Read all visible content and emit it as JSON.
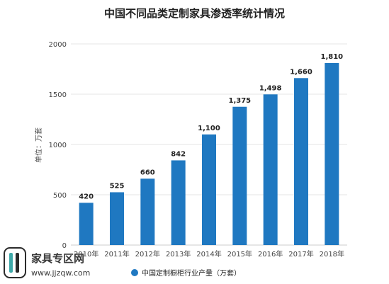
{
  "chart_data": {
    "type": "bar",
    "title": "中国不同品类定制家具渗透率统计情况",
    "ylabel": "单位：万套",
    "categories": [
      "2010年",
      "2011年",
      "2012年",
      "2013年",
      "2014年",
      "2015年",
      "2016年",
      "2017年",
      "2018年"
    ],
    "series": [
      {
        "name": "中国定制橱柜行业产量（万套）",
        "values": [
          420,
          525,
          660,
          842,
          1100,
          1375,
          1498,
          1660,
          1810
        ]
      }
    ],
    "data_labels": [
      "420",
      "525",
      "660",
      "842",
      "1,100",
      "1,375",
      "1,498",
      "1,660",
      "1,810"
    ],
    "y_ticks": [
      "0",
      "500",
      "1000",
      "1500",
      "2000"
    ],
    "ylim": [
      0,
      2000
    ],
    "grid": true,
    "legend": "bottom",
    "colors": {
      "bar": "#1f78c1",
      "grid": "#e6e6e6"
    }
  },
  "watermark": {
    "name": "家具专区网",
    "url": "www.jjzqw.com"
  }
}
